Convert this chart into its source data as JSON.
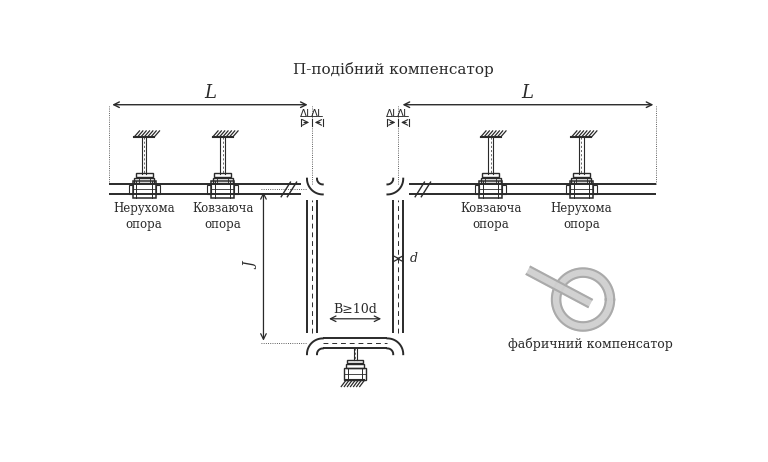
{
  "title": "П-подібний компенсатор",
  "label_fixed_left": "Нерухома\nопора",
  "label_sliding_left": "Ковзаюча\nопора",
  "label_sliding_right": "Ковзаюча\nопора",
  "label_fixed_right": "Нерухома\nопора",
  "label_factory": "фабричний компенсатор",
  "label_L": "L",
  "label_dL": "ΔL",
  "label_B": "B≥10d",
  "label_J": "J",
  "label_d": "d",
  "bg_color": "#ffffff",
  "line_color": "#2a2a2a",
  "text_color": "#2a2a2a"
}
